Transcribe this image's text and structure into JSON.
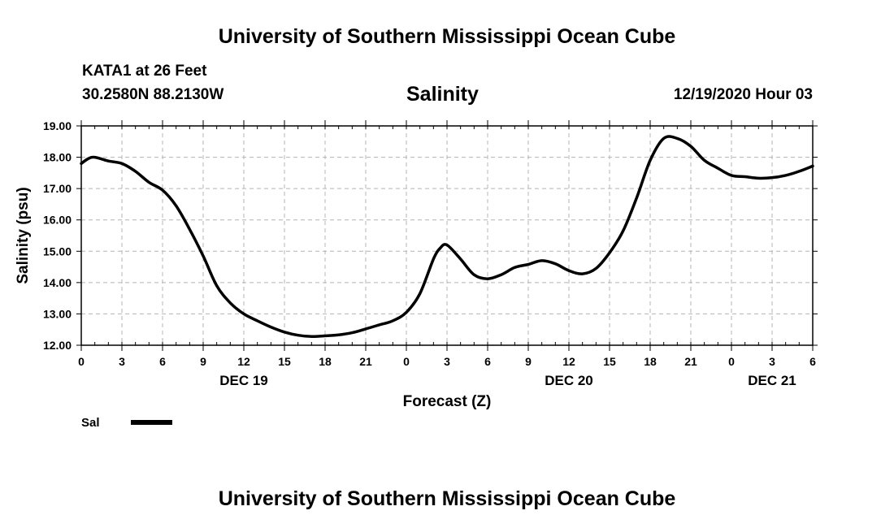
{
  "header": {
    "title": "University of Southern Mississippi Ocean Cube",
    "station": "KATA1 at 26 Feet",
    "coordinates": "30.2580N 88.2130W",
    "parameter": "Salinity",
    "datetime": "12/19/2020 Hour 03"
  },
  "footer": {
    "title": "University of Southern Mississippi Ocean Cube"
  },
  "chart_data": {
    "type": "line",
    "title": "Salinity",
    "xlabel": "Forecast (Z)",
    "ylabel": "Salinity (psu)",
    "xlim": [
      0,
      54
    ],
    "ylim": [
      12,
      19
    ],
    "grid": true,
    "legend_position": "bottom-left",
    "x_tick_values": [
      0,
      3,
      6,
      9,
      12,
      15,
      18,
      21,
      24,
      27,
      30,
      33,
      36,
      39,
      42,
      45,
      48,
      51,
      54
    ],
    "x_tick_labels": [
      "0",
      "3",
      "6",
      "9",
      "12",
      "15",
      "18",
      "21",
      "0",
      "3",
      "6",
      "9",
      "12",
      "15",
      "18",
      "21",
      "0",
      "3",
      "6"
    ],
    "y_tick_values": [
      12,
      13,
      14,
      15,
      16,
      17,
      18,
      19
    ],
    "y_tick_labels": [
      "12.00",
      "13.00",
      "14.00",
      "15.00",
      "16.00",
      "17.00",
      "18.00",
      "19.00"
    ],
    "day_labels": [
      {
        "label": "DEC 19",
        "x": 12
      },
      {
        "label": "DEC 20",
        "x": 36
      },
      {
        "label": "DEC 21",
        "x": 51
      }
    ],
    "series": [
      {
        "name": "Sal",
        "color": "#000000",
        "x": [
          0,
          0.5,
          1,
          2,
          3,
          4,
          5,
          6,
          7,
          8,
          9,
          10,
          11,
          12,
          13,
          14,
          15,
          16,
          17,
          18,
          19,
          20,
          21,
          22,
          23,
          24,
          25,
          26,
          26.5,
          27,
          28,
          29,
          30,
          31,
          32,
          33,
          34,
          35,
          36,
          37,
          38,
          39,
          40,
          41,
          42,
          43,
          44,
          45,
          46,
          47,
          48,
          49,
          50,
          51,
          52,
          53,
          54
        ],
        "values": [
          17.8,
          17.95,
          18.0,
          17.88,
          17.8,
          17.55,
          17.2,
          16.95,
          16.45,
          15.7,
          14.85,
          13.9,
          13.35,
          13.0,
          12.78,
          12.58,
          12.42,
          12.32,
          12.28,
          12.3,
          12.33,
          12.4,
          12.52,
          12.65,
          12.78,
          13.05,
          13.65,
          14.75,
          15.1,
          15.2,
          14.75,
          14.25,
          14.12,
          14.25,
          14.48,
          14.58,
          14.7,
          14.6,
          14.38,
          14.28,
          14.45,
          14.95,
          15.65,
          16.7,
          17.9,
          18.6,
          18.6,
          18.35,
          17.9,
          17.65,
          17.42,
          17.38,
          17.33,
          17.35,
          17.42,
          17.55,
          17.72
        ]
      }
    ]
  }
}
